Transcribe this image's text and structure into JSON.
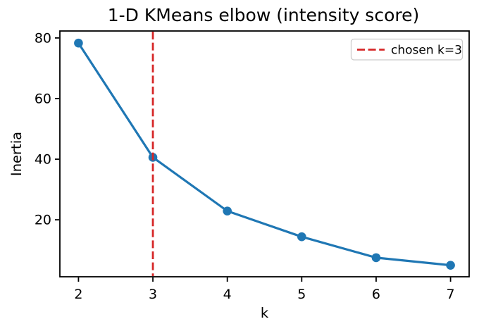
{
  "figure": {
    "background": "#ffffff"
  },
  "chart_data": {
    "type": "line",
    "title": "1-D KMeans elbow (intensity score)",
    "xlabel": "k",
    "ylabel": "Inertia",
    "x": [
      2,
      3,
      4,
      5,
      6,
      7
    ],
    "y": [
      78.3,
      40.6,
      22.9,
      14.4,
      7.5,
      5.0
    ],
    "series_name": "inertia",
    "xlim": [
      1.75,
      7.25
    ],
    "ylim": [
      1.2,
      82.3
    ],
    "xticks": [
      2,
      3,
      4,
      5,
      6,
      7
    ],
    "yticks": [
      20,
      40,
      60,
      80
    ],
    "grid": false,
    "line_color": "#1f77b4",
    "marker": "circle",
    "vline": {
      "x": 3,
      "color": "#d62728",
      "style": "dashed"
    },
    "legend": {
      "position": "upper right",
      "entries": [
        {
          "label": "chosen k=3",
          "color": "#d62728",
          "style": "dashed"
        }
      ]
    }
  }
}
